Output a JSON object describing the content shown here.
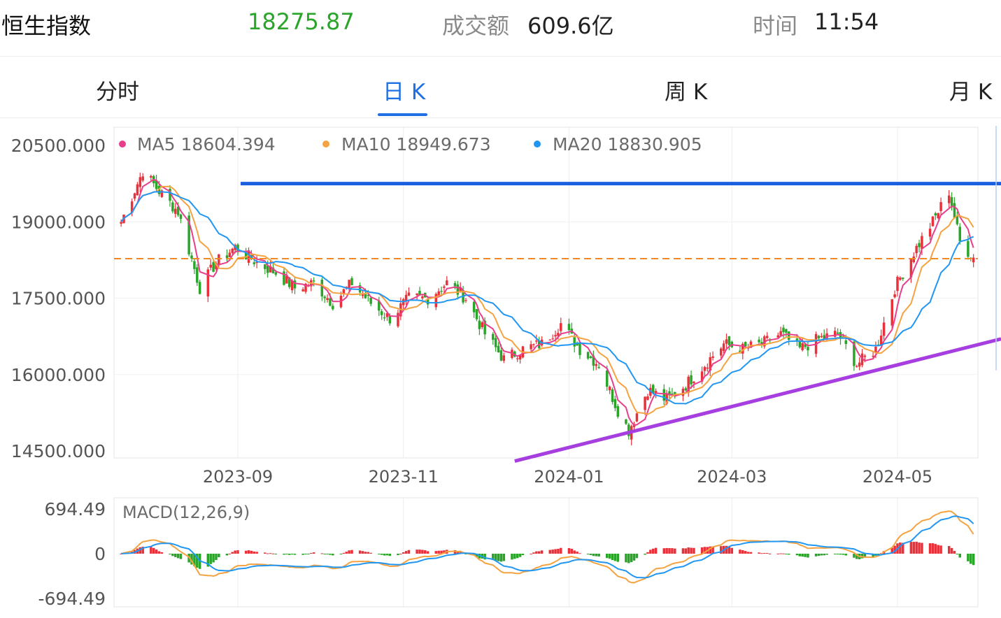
{
  "header": {
    "name": "恒生指数",
    "price": "18275.87",
    "turnover_label": "成交额",
    "turnover_value": "609.6亿",
    "time_label": "时间",
    "time_value": "11:54"
  },
  "tabs": [
    {
      "label": "分时",
      "active": false
    },
    {
      "label": "日 K",
      "active": true
    },
    {
      "label": "周 K",
      "active": false
    },
    {
      "label": "月 K",
      "active": false
    }
  ],
  "colors": {
    "up": "#e8313a",
    "down": "#2aa52a",
    "ma5": "#e83e8c",
    "ma10": "#f5a340",
    "ma20": "#2196f3",
    "price": "#2aa52a",
    "accent": "#1f6fe5",
    "resistance": "#1a5fe0",
    "support": "#a63ee0",
    "current": "#f08a24"
  },
  "chart_data": [
    {
      "type": "candlestick",
      "legend": [
        {
          "name": "MA5",
          "value": "18604.394"
        },
        {
          "name": "MA10",
          "value": "18949.673"
        },
        {
          "name": "MA20",
          "value": "18830.905"
        }
      ],
      "y_ticks": [
        "20500.000",
        "19000.000",
        "17500.000",
        "16000.000",
        "14500.000"
      ],
      "ylim": [
        14500,
        20500
      ],
      "x_ticks": [
        "2023-09",
        "2023-11",
        "2024-01",
        "2024-03",
        "2024-05"
      ],
      "annotations": {
        "resistance_level": 19750,
        "current_price_line": 18275.87,
        "support_line": {
          "from": [
            "2023-12-12",
            14300
          ],
          "to": [
            "2024-05-24",
            16700
          ]
        }
      },
      "close_keypoints": [
        [
          "2023-07-20",
          19000
        ],
        [
          "2023-07-28",
          20000
        ],
        [
          "2023-08-03",
          19600
        ],
        [
          "2023-08-10",
          19200
        ],
        [
          "2023-08-18",
          17700
        ],
        [
          "2023-08-24",
          18200
        ],
        [
          "2023-08-31",
          18500
        ],
        [
          "2023-09-08",
          18200
        ],
        [
          "2023-09-15",
          18000
        ],
        [
          "2023-09-22",
          17700
        ],
        [
          "2023-09-29",
          17800
        ],
        [
          "2023-10-06",
          17400
        ],
        [
          "2023-10-13",
          17800
        ],
        [
          "2023-10-20",
          17400
        ],
        [
          "2023-10-27",
          17100
        ],
        [
          "2023-11-03",
          17500
        ],
        [
          "2023-11-10",
          17500
        ],
        [
          "2023-11-17",
          17800
        ],
        [
          "2023-11-24",
          17500
        ],
        [
          "2023-12-01",
          16800
        ],
        [
          "2023-12-08",
          16300
        ],
        [
          "2023-12-15",
          16500
        ],
        [
          "2023-12-22",
          16600
        ],
        [
          "2023-12-29",
          17000
        ],
        [
          "2024-01-05",
          16500
        ],
        [
          "2024-01-12",
          16200
        ],
        [
          "2024-01-19",
          15300
        ],
        [
          "2024-01-23",
          14900
        ],
        [
          "2024-01-30",
          15700
        ],
        [
          "2024-02-06",
          15500
        ],
        [
          "2024-02-13",
          15800
        ],
        [
          "2024-02-20",
          16200
        ],
        [
          "2024-02-27",
          16600
        ],
        [
          "2024-03-05",
          16500
        ],
        [
          "2024-03-12",
          16600
        ],
        [
          "2024-03-19",
          16800
        ],
        [
          "2024-03-26",
          16500
        ],
        [
          "2024-04-02",
          16700
        ],
        [
          "2024-04-09",
          16800
        ],
        [
          "2024-04-16",
          16200
        ],
        [
          "2024-04-23",
          16500
        ],
        [
          "2024-04-30",
          17700
        ],
        [
          "2024-05-07",
          18400
        ],
        [
          "2024-05-14",
          19000
        ],
        [
          "2024-05-20",
          19600
        ],
        [
          "2024-05-24",
          18600
        ],
        [
          "2024-05-29",
          18300
        ]
      ]
    },
    {
      "type": "bar",
      "title": "MACD(12,26,9)",
      "y_ticks": [
        "694.49",
        "0",
        "-694.49"
      ],
      "ylim": [
        -694.49,
        694.49
      ]
    }
  ]
}
